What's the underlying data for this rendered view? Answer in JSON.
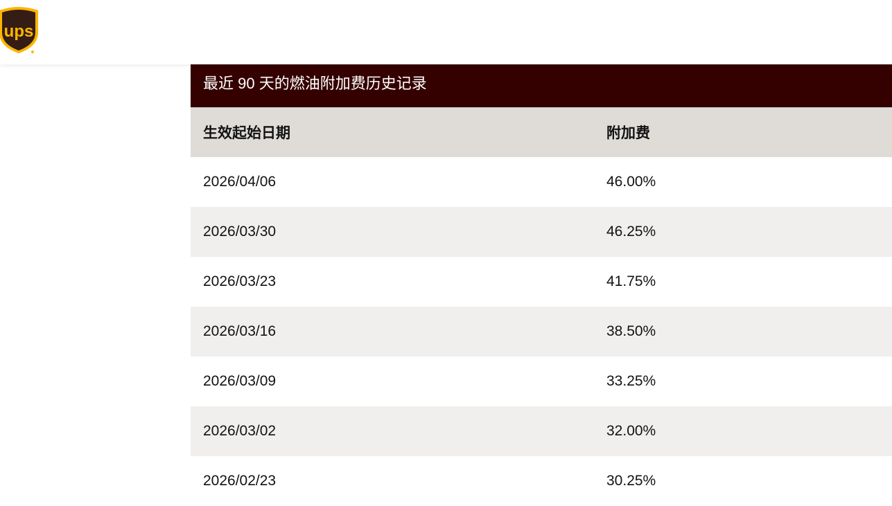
{
  "header": {
    "logo_text": "ups",
    "brand_colors": {
      "brown": "#351c15",
      "gold": "#ffb500"
    }
  },
  "table": {
    "caption": "最近 90 天的燃油附加费历史记录",
    "columns": [
      "生效起始日期",
      "附加费"
    ],
    "rows": [
      {
        "date": "2026/04/06",
        "surcharge": "46.00%"
      },
      {
        "date": "2026/03/30",
        "surcharge": "46.25%"
      },
      {
        "date": "2026/03/23",
        "surcharge": "41.75%"
      },
      {
        "date": "2026/03/16",
        "surcharge": "38.50%"
      },
      {
        "date": "2026/03/09",
        "surcharge": "33.25%"
      },
      {
        "date": "2026/03/02",
        "surcharge": "32.00%"
      },
      {
        "date": "2026/02/23",
        "surcharge": "30.25%"
      }
    ],
    "caption_color": "#350000"
  }
}
